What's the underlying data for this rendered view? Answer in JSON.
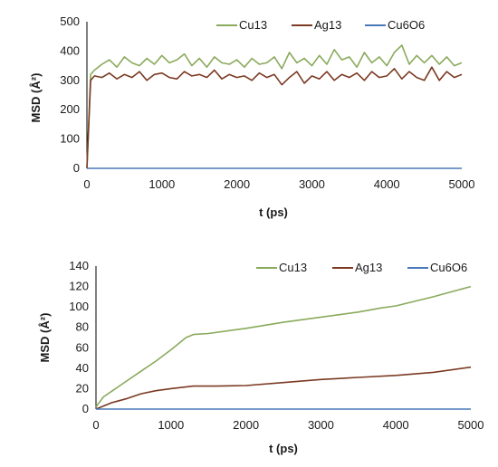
{
  "chart_data": [
    {
      "type": "line",
      "xlabel": "t (ps)",
      "ylabel": "MSD (Å²)",
      "xlim": [
        0,
        5000
      ],
      "ylim": [
        0,
        500
      ],
      "xticks": [
        "0",
        "1000",
        "2000",
        "3000",
        "4000",
        "5000"
      ],
      "yticks": [
        "0",
        "100",
        "200",
        "300",
        "400",
        "500"
      ],
      "grid": false,
      "legend_position": "top",
      "series": [
        {
          "name": "Cu13",
          "color": "#8aaa5c",
          "x": [
            0,
            50,
            100,
            200,
            300,
            400,
            500,
            600,
            700,
            800,
            900,
            1000,
            1100,
            1200,
            1300,
            1400,
            1500,
            1600,
            1700,
            1800,
            1900,
            2000,
            2100,
            2200,
            2300,
            2400,
            2500,
            2600,
            2700,
            2800,
            2900,
            3000,
            3100,
            3200,
            3300,
            3400,
            3500,
            3600,
            3700,
            3800,
            3900,
            4000,
            4100,
            4200,
            4300,
            4400,
            4500,
            4600,
            4700,
            4800,
            4900,
            5000
          ],
          "y": [
            0,
            320,
            335,
            355,
            370,
            345,
            380,
            360,
            350,
            375,
            355,
            385,
            360,
            370,
            390,
            350,
            375,
            345,
            380,
            360,
            355,
            370,
            345,
            375,
            355,
            360,
            380,
            340,
            395,
            360,
            375,
            350,
            385,
            355,
            405,
            370,
            380,
            345,
            395,
            360,
            380,
            350,
            395,
            420,
            355,
            385,
            360,
            385,
            355,
            380,
            350,
            360
          ]
        },
        {
          "name": "Ag13",
          "color": "#7b3a23",
          "x": [
            0,
            50,
            100,
            200,
            300,
            400,
            500,
            600,
            700,
            800,
            900,
            1000,
            1100,
            1200,
            1300,
            1400,
            1500,
            1600,
            1700,
            1800,
            1900,
            2000,
            2100,
            2200,
            2300,
            2400,
            2500,
            2600,
            2700,
            2800,
            2900,
            3000,
            3100,
            3200,
            3300,
            3400,
            3500,
            3600,
            3700,
            3800,
            3900,
            4000,
            4100,
            4200,
            4300,
            4400,
            4500,
            4600,
            4700,
            4800,
            4900,
            5000
          ],
          "y": [
            0,
            300,
            315,
            310,
            325,
            305,
            320,
            310,
            330,
            300,
            320,
            325,
            310,
            305,
            330,
            315,
            320,
            310,
            335,
            305,
            320,
            310,
            315,
            300,
            325,
            310,
            320,
            285,
            310,
            330,
            290,
            315,
            305,
            330,
            300,
            320,
            310,
            325,
            300,
            330,
            310,
            315,
            340,
            305,
            330,
            310,
            300,
            345,
            300,
            330,
            310,
            320
          ]
        },
        {
          "name": "Cu6O6",
          "color": "#4a78b8",
          "x": [
            0,
            5000
          ],
          "y": [
            0,
            0
          ]
        }
      ]
    },
    {
      "type": "line",
      "xlabel": "t (ps)",
      "ylabel": "MSD (Å²)",
      "xlim": [
        0,
        5000
      ],
      "ylim": [
        0,
        140
      ],
      "xticks": [
        "0",
        "1000",
        "2000",
        "3000",
        "4000",
        "5000"
      ],
      "yticks": [
        "0",
        "20",
        "40",
        "60",
        "80",
        "100",
        "120",
        "140"
      ],
      "grid": false,
      "legend_position": "top",
      "series": [
        {
          "name": "Cu13",
          "color": "#8aaa5c",
          "x": [
            0,
            100,
            200,
            400,
            600,
            800,
            1000,
            1200,
            1300,
            1500,
            2000,
            2500,
            3000,
            3500,
            3800,
            4000,
            4500,
            5000
          ],
          "y": [
            2,
            12,
            17,
            27,
            37,
            47,
            58,
            70,
            73,
            74,
            79,
            85,
            90,
            95,
            99,
            101,
            110,
            120
          ]
        },
        {
          "name": "Ag13",
          "color": "#7b3a23",
          "x": [
            0,
            200,
            400,
            600,
            800,
            1000,
            1300,
            1600,
            2000,
            2500,
            3000,
            3500,
            4000,
            4500,
            5000
          ],
          "y": [
            0,
            6,
            10,
            15,
            18,
            20,
            22.5,
            22.5,
            23,
            26,
            29,
            31,
            33,
            36,
            41
          ]
        },
        {
          "name": "Cu6O6",
          "color": "#4a78b8",
          "x": [
            0,
            5000
          ],
          "y": [
            0,
            0
          ]
        }
      ]
    }
  ]
}
